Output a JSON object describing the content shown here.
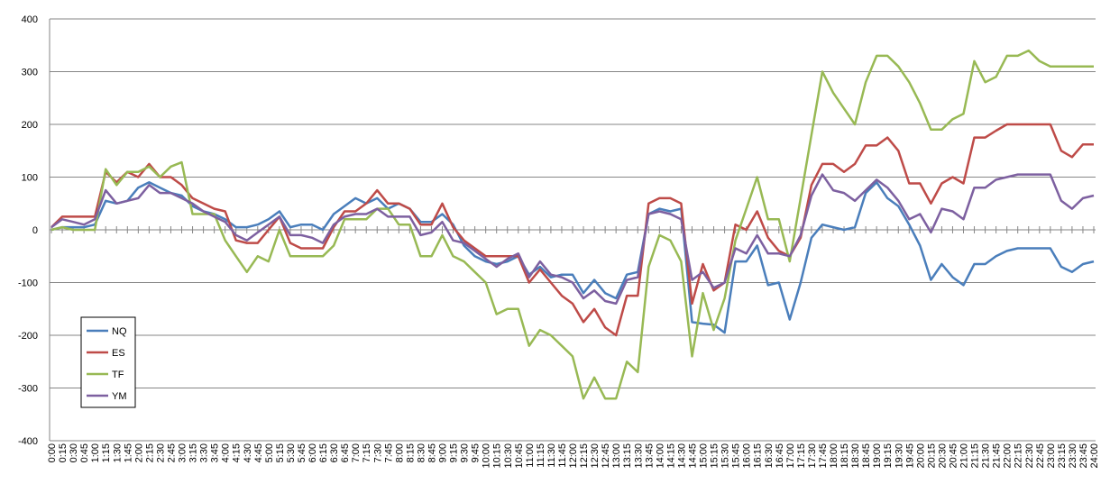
{
  "chart_data": {
    "type": "line",
    "categories": [
      "0:00",
      "0:15",
      "0:30",
      "0:45",
      "1:00",
      "1:15",
      "1:30",
      "1:45",
      "2:00",
      "2:15",
      "2:30",
      "2:45",
      "3:00",
      "3:15",
      "3:30",
      "3:45",
      "4:00",
      "4:15",
      "4:30",
      "4:45",
      "5:00",
      "5:15",
      "5:30",
      "5:45",
      "6:00",
      "6:15",
      "6:30",
      "6:45",
      "7:00",
      "7:15",
      "7:30",
      "7:45",
      "8:00",
      "8:15",
      "8:30",
      "8:45",
      "9:00",
      "9:15",
      "9:30",
      "9:45",
      "10:00",
      "10:15",
      "10:30",
      "10:45",
      "11:00",
      "11:15",
      "11:30",
      "11:45",
      "12:00",
      "12:15",
      "12:30",
      "12:45",
      "13:00",
      "13:15",
      "13:30",
      "13:45",
      "14:00",
      "14:15",
      "14:30",
      "14:45",
      "15:00",
      "15:15",
      "15:30",
      "15:45",
      "16:00",
      "16:15",
      "16:30",
      "16:45",
      "17:00",
      "17:15",
      "17:30",
      "17:45",
      "18:00",
      "18:15",
      "18:30",
      "18:45",
      "19:00",
      "19:15",
      "19:30",
      "19:45",
      "20:00",
      "20:15",
      "20:30",
      "20:45",
      "21:00",
      "21:15",
      "21:30",
      "21:45",
      "22:00",
      "22:15",
      "22:30",
      "22:45",
      "23:00",
      "23:15",
      "23:30",
      "23:45",
      "24:00"
    ],
    "series": [
      {
        "name": "NQ",
        "color": "#4a7ebb",
        "values": [
          0,
          5,
          5,
          5,
          10,
          55,
          50,
          55,
          80,
          90,
          80,
          70,
          65,
          45,
          35,
          30,
          20,
          5,
          5,
          10,
          20,
          35,
          5,
          10,
          10,
          0,
          30,
          45,
          60,
          50,
          60,
          40,
          50,
          40,
          15,
          15,
          30,
          10,
          -30,
          -50,
          -60,
          -65,
          -60,
          -50,
          -85,
          -70,
          -90,
          -85,
          -85,
          -120,
          -95,
          -120,
          -130,
          -85,
          -80,
          30,
          40,
          35,
          40,
          -175,
          -178,
          -180,
          -195,
          -60,
          -60,
          -30,
          -105,
          -100,
          -170,
          -100,
          -15,
          10,
          5,
          0,
          5,
          70,
          90,
          60,
          45,
          10,
          -30,
          -95,
          -65,
          -90,
          -105,
          -65,
          -65,
          -50,
          -40,
          -35,
          -35,
          -35,
          -35,
          -70,
          -80,
          -65,
          -60
        ]
      },
      {
        "name": "ES",
        "color": "#be4b48",
        "values": [
          5,
          25,
          25,
          25,
          25,
          110,
          90,
          110,
          100,
          125,
          100,
          100,
          85,
          60,
          50,
          40,
          35,
          -20,
          -25,
          -25,
          0,
          25,
          -25,
          -35,
          -35,
          -35,
          5,
          35,
          35,
          50,
          75,
          50,
          50,
          40,
          10,
          10,
          50,
          5,
          -20,
          -35,
          -50,
          -50,
          -50,
          -50,
          -100,
          -75,
          -100,
          -125,
          -140,
          -175,
          -150,
          -185,
          -200,
          -125,
          -125,
          50,
          60,
          60,
          50,
          -140,
          -65,
          -115,
          -100,
          10,
          0,
          35,
          -15,
          -40,
          -50,
          -15,
          85,
          125,
          125,
          110,
          125,
          160,
          160,
          175,
          150,
          88,
          88,
          50,
          88,
          100,
          88,
          175,
          175,
          188,
          200,
          200,
          200,
          200,
          200,
          150,
          138,
          162,
          162
        ]
      },
      {
        "name": "TF",
        "color": "#98b954",
        "values": [
          0,
          5,
          0,
          0,
          0,
          115,
          85,
          110,
          110,
          120,
          100,
          120,
          128,
          30,
          30,
          30,
          -20,
          -50,
          -80,
          -50,
          -60,
          0,
          -50,
          -50,
          -50,
          -50,
          -30,
          20,
          20,
          20,
          40,
          40,
          10,
          10,
          -50,
          -50,
          -10,
          -50,
          -60,
          -80,
          -100,
          -160,
          -150,
          -150,
          -220,
          -190,
          -200,
          -220,
          -240,
          -320,
          -280,
          -320,
          -320,
          -250,
          -270,
          -70,
          -10,
          -20,
          -60,
          -240,
          -120,
          -190,
          -130,
          -20,
          40,
          100,
          20,
          20,
          -60,
          60,
          180,
          300,
          260,
          230,
          200,
          280,
          330,
          330,
          310,
          280,
          240,
          190,
          190,
          210,
          220,
          320,
          280,
          290,
          330,
          330,
          340,
          320,
          310,
          310,
          310,
          310,
          310
        ]
      },
      {
        "name": "YM",
        "color": "#7d60a0",
        "values": [
          5,
          20,
          15,
          10,
          20,
          75,
          50,
          55,
          60,
          85,
          70,
          70,
          60,
          50,
          35,
          25,
          15,
          -10,
          -20,
          -5,
          10,
          25,
          -10,
          -10,
          -15,
          -25,
          10,
          25,
          30,
          30,
          40,
          25,
          25,
          25,
          -10,
          -5,
          15,
          -20,
          -25,
          -40,
          -55,
          -70,
          -55,
          -45,
          -90,
          -60,
          -85,
          -90,
          -100,
          -130,
          -115,
          -135,
          -140,
          -95,
          -90,
          30,
          35,
          30,
          20,
          -95,
          -80,
          -110,
          -100,
          -35,
          -45,
          -10,
          -45,
          -45,
          -50,
          -10,
          65,
          105,
          75,
          70,
          55,
          75,
          95,
          80,
          55,
          20,
          30,
          -5,
          40,
          35,
          20,
          80,
          80,
          95,
          100,
          105,
          105,
          105,
          105,
          55,
          40,
          60,
          65
        ]
      }
    ],
    "ylim": [
      -400,
      400
    ],
    "yticks": [
      -400,
      -300,
      -200,
      -100,
      0,
      100,
      200,
      300,
      400
    ],
    "grid": true,
    "legend": "lower-left"
  }
}
